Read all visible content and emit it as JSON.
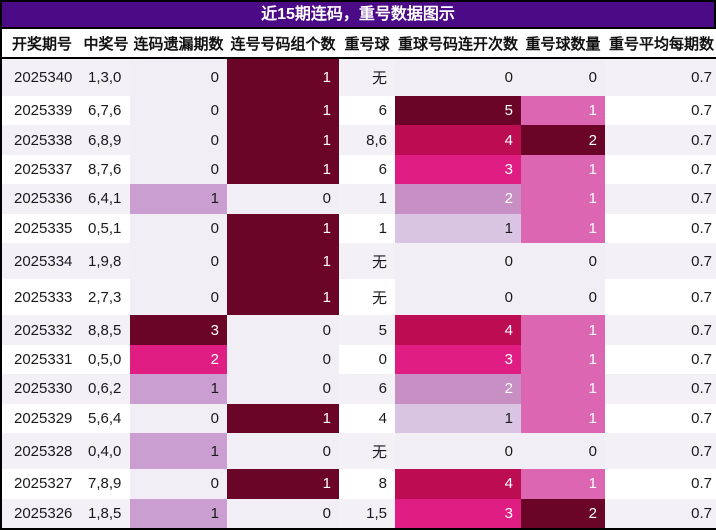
{
  "title": "近15期连码，重号数据图示",
  "title_bar": {
    "bg": "#4b0a86",
    "fg": "#ffffff"
  },
  "frame_border": "#000000",
  "row_colors": {
    "odd": "#f3f1f5",
    "even": "#ffffff"
  },
  "chart_data": {
    "type": "heatmap",
    "title": "近15期连码，重号数据图示",
    "columns": [
      "开奖期号",
      "中奖号",
      "连码遗漏期数",
      "连号号码组个数",
      "重号球",
      "重球号码连开次数",
      "重号球数量",
      "重号平均每期数"
    ],
    "palette": {
      "zero": {
        "bg": "#f2eef5",
        "fg": "#1a1a1a"
      },
      "lilac_light": {
        "bg": "#d9c4e1",
        "fg": "#1a1a1a"
      },
      "lilac": {
        "bg": "#cb9ed2",
        "fg": "#1a1a1a"
      },
      "orchid": {
        "bg": "#c78fc3",
        "fg": "#ffffff"
      },
      "pink": {
        "bg": "#dd66b2",
        "fg": "#ffffff"
      },
      "magenta": {
        "bg": "#e01d82",
        "fg": "#ffffff"
      },
      "crimson": {
        "bg": "#bd0d52",
        "fg": "#ffffff"
      },
      "maroon": {
        "bg": "#6b0527",
        "fg": "#ffffff"
      }
    },
    "rows": [
      {
        "period": "2025340",
        "win": "1,3,0",
        "miss": {
          "v": "0",
          "tone": "zero"
        },
        "group": {
          "v": "1",
          "tone": "maroon"
        },
        "ball": "无",
        "streak": {
          "v": "0",
          "tone": "zero"
        },
        "count": {
          "v": "0",
          "tone": "zero"
        },
        "avg": "0.7"
      },
      {
        "period": "2025339",
        "win": "6,7,6",
        "miss": {
          "v": "0",
          "tone": "zero"
        },
        "group": {
          "v": "1",
          "tone": "maroon"
        },
        "ball": "6",
        "streak": {
          "v": "5",
          "tone": "maroon"
        },
        "count": {
          "v": "1",
          "tone": "pink"
        },
        "avg": "0.7"
      },
      {
        "period": "2025338",
        "win": "6,8,9",
        "miss": {
          "v": "0",
          "tone": "zero"
        },
        "group": {
          "v": "1",
          "tone": "maroon"
        },
        "ball": "8,6",
        "streak": {
          "v": "4",
          "tone": "crimson"
        },
        "count": {
          "v": "2",
          "tone": "maroon"
        },
        "avg": "0.7"
      },
      {
        "period": "2025337",
        "win": "8,7,6",
        "miss": {
          "v": "0",
          "tone": "zero"
        },
        "group": {
          "v": "1",
          "tone": "maroon"
        },
        "ball": "6",
        "streak": {
          "v": "3",
          "tone": "magenta"
        },
        "count": {
          "v": "1",
          "tone": "pink"
        },
        "avg": "0.7"
      },
      {
        "period": "2025336",
        "win": "6,4,1",
        "miss": {
          "v": "1",
          "tone": "lilac"
        },
        "group": {
          "v": "0",
          "tone": "zero"
        },
        "ball": "1",
        "streak": {
          "v": "2",
          "tone": "orchid"
        },
        "count": {
          "v": "1",
          "tone": "pink"
        },
        "avg": "0.7"
      },
      {
        "period": "2025335",
        "win": "0,5,1",
        "miss": {
          "v": "0",
          "tone": "zero"
        },
        "group": {
          "v": "1",
          "tone": "maroon"
        },
        "ball": "1",
        "streak": {
          "v": "1",
          "tone": "lilac_light"
        },
        "count": {
          "v": "1",
          "tone": "pink"
        },
        "avg": "0.7"
      },
      {
        "period": "2025334",
        "win": "1,9,8",
        "miss": {
          "v": "0",
          "tone": "zero"
        },
        "group": {
          "v": "1",
          "tone": "maroon"
        },
        "ball": "无",
        "streak": {
          "v": "0",
          "tone": "zero"
        },
        "count": {
          "v": "0",
          "tone": "zero"
        },
        "avg": "0.7"
      },
      {
        "period": "2025333",
        "win": "2,7,3",
        "miss": {
          "v": "0",
          "tone": "zero"
        },
        "group": {
          "v": "1",
          "tone": "maroon"
        },
        "ball": "无",
        "streak": {
          "v": "0",
          "tone": "zero"
        },
        "count": {
          "v": "0",
          "tone": "zero"
        },
        "avg": "0.7"
      },
      {
        "period": "2025332",
        "win": "8,8,5",
        "miss": {
          "v": "3",
          "tone": "maroon"
        },
        "group": {
          "v": "0",
          "tone": "zero"
        },
        "ball": "5",
        "streak": {
          "v": "4",
          "tone": "crimson"
        },
        "count": {
          "v": "1",
          "tone": "pink"
        },
        "avg": "0.7"
      },
      {
        "period": "2025331",
        "win": "0,5,0",
        "miss": {
          "v": "2",
          "tone": "magenta"
        },
        "group": {
          "v": "0",
          "tone": "zero"
        },
        "ball": "0",
        "streak": {
          "v": "3",
          "tone": "magenta"
        },
        "count": {
          "v": "1",
          "tone": "pink"
        },
        "avg": "0.7"
      },
      {
        "period": "2025330",
        "win": "0,6,2",
        "miss": {
          "v": "1",
          "tone": "lilac"
        },
        "group": {
          "v": "0",
          "tone": "zero"
        },
        "ball": "6",
        "streak": {
          "v": "2",
          "tone": "orchid"
        },
        "count": {
          "v": "1",
          "tone": "pink"
        },
        "avg": "0.7"
      },
      {
        "period": "2025329",
        "win": "5,6,4",
        "miss": {
          "v": "0",
          "tone": "zero"
        },
        "group": {
          "v": "1",
          "tone": "maroon"
        },
        "ball": "4",
        "streak": {
          "v": "1",
          "tone": "lilac_light"
        },
        "count": {
          "v": "1",
          "tone": "pink"
        },
        "avg": "0.7"
      },
      {
        "period": "2025328",
        "win": "0,4,0",
        "miss": {
          "v": "1",
          "tone": "lilac"
        },
        "group": {
          "v": "0",
          "tone": "zero"
        },
        "ball": "无",
        "streak": {
          "v": "0",
          "tone": "zero"
        },
        "count": {
          "v": "0",
          "tone": "zero"
        },
        "avg": "0.7"
      },
      {
        "period": "2025327",
        "win": "7,8,9",
        "miss": {
          "v": "0",
          "tone": "zero"
        },
        "group": {
          "v": "1",
          "tone": "maroon"
        },
        "ball": "8",
        "streak": {
          "v": "4",
          "tone": "crimson"
        },
        "count": {
          "v": "1",
          "tone": "pink"
        },
        "avg": "0.7"
      },
      {
        "period": "2025326",
        "win": "1,8,5",
        "miss": {
          "v": "1",
          "tone": "lilac"
        },
        "group": {
          "v": "0",
          "tone": "zero"
        },
        "ball": "1,5",
        "streak": {
          "v": "3",
          "tone": "magenta"
        },
        "count": {
          "v": "2",
          "tone": "maroon"
        },
        "avg": "0.7"
      }
    ]
  }
}
